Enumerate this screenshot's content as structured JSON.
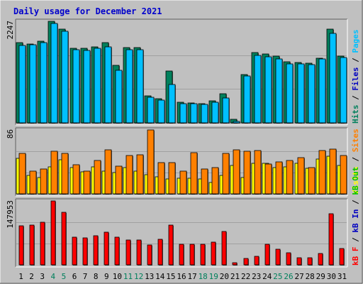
{
  "title": "Daily usage for December 2021",
  "colors": {
    "background": "#c0c0c0",
    "hits": "#00805c",
    "files": "#00c0ff",
    "pages": "#00e0ff",
    "visits": "#ffff00",
    "sites": "#ff8000",
    "kb": "#ff0000",
    "kb_in": "#0000c0",
    "kb_out": "#00c000",
    "weekend_day": "#00805c",
    "weekday": "#000000",
    "title": "#0000cc"
  },
  "chart_data": {
    "type": "bar",
    "categories": [
      "1",
      "2",
      "3",
      "4",
      "5",
      "6",
      "7",
      "8",
      "9",
      "10",
      "11",
      "12",
      "13",
      "14",
      "15",
      "16",
      "17",
      "18",
      "19",
      "20",
      "21",
      "22",
      "23",
      "24",
      "25",
      "26",
      "27",
      "28",
      "29",
      "30",
      "31"
    ],
    "weekend_days": [
      "4",
      "5",
      "11",
      "12",
      "18",
      "19",
      "25",
      "26"
    ],
    "panels": [
      {
        "id": "hits-files-pages",
        "max_label": "2247",
        "ylim": [
          0,
          2247
        ],
        "side_labels": [
          {
            "text": "Hits",
            "color_key": "hits"
          },
          {
            "text": " / ",
            "color_key": "weekday"
          },
          {
            "text": "Files",
            "color_key": "kb_in"
          },
          {
            "text": " / ",
            "color_key": "weekday"
          },
          {
            "text": "Pages",
            "color_key": "files"
          }
        ],
        "series": [
          {
            "name": "Hits",
            "color_key": "hits",
            "values": [
              1770,
              1750,
              1800,
              2247,
              2080,
              1650,
              1650,
              1680,
              1770,
              1270,
              1660,
              1660,
              590,
              540,
              1140,
              450,
              440,
              430,
              480,
              640,
              80,
              1070,
              1560,
              1520,
              1470,
              1350,
              1330,
              1320,
              1430,
              2070,
              1480
            ]
          },
          {
            "name": "Files",
            "color_key": "files",
            "values": [
              1720,
              1730,
              1770,
              2200,
              2030,
              1620,
              1610,
              1650,
              1680,
              1160,
              1620,
              1620,
              560,
              510,
              850,
              430,
              420,
              410,
              460,
              550,
              30,
              1040,
              1500,
              1460,
              1410,
              1310,
              1300,
              1290,
              1410,
              1980,
              1450
            ]
          }
        ]
      },
      {
        "id": "visits-sites",
        "max_label": "86",
        "ylim": [
          0,
          86
        ],
        "side_labels": [
          {
            "text": "Visits",
            "color_key": "visits"
          },
          {
            "text": " / ",
            "color_key": "weekday"
          },
          {
            "text": "Sites",
            "color_key": "sites"
          }
        ],
        "series": [
          {
            "name": "Visits",
            "color_key": "visits",
            "values": [
              48,
              25,
              22,
              36,
              46,
              35,
              30,
              36,
              31,
              29,
              35,
              31,
              26,
              23,
              20,
              21,
              21,
              20,
              15,
              25,
              38,
              22,
              41,
              41,
              35,
              36,
              41,
              34,
              47,
              51,
              38
            ]
          },
          {
            "name": "Sites",
            "color_key": "sites",
            "values": [
              54,
              31,
              33,
              57,
              54,
              39,
              31,
              45,
              59,
              37,
              52,
              53,
              86,
              42,
              42,
              31,
              55,
              33,
              35,
              54,
              59,
              57,
              58,
              40,
              43,
              45,
              49,
              35,
              58,
              60,
              52
            ]
          }
        ]
      },
      {
        "id": "kb",
        "max_label": "147953",
        "ylim": [
          0,
          147953
        ],
        "side_labels": [
          {
            "text": "kB F",
            "color_key": "kb"
          },
          {
            "text": " / ",
            "color_key": "weekday"
          },
          {
            "text": "kB In",
            "color_key": "kb_in"
          },
          {
            "text": " / ",
            "color_key": "weekday"
          },
          {
            "text": "kB Out",
            "color_key": "kb_out"
          }
        ],
        "series": [
          {
            "name": "kB F",
            "color_key": "kb",
            "values": [
              90000,
              92000,
              98000,
              147953,
              122000,
              64000,
              62000,
              67000,
              75000,
              64000,
              57000,
              58000,
              46000,
              59000,
              92000,
              47000,
              47000,
              47000,
              52000,
              78000,
              5000,
              14000,
              19000,
              48000,
              36000,
              28000,
              16000,
              16000,
              26000,
              118000,
              37000
            ]
          }
        ]
      }
    ]
  }
}
